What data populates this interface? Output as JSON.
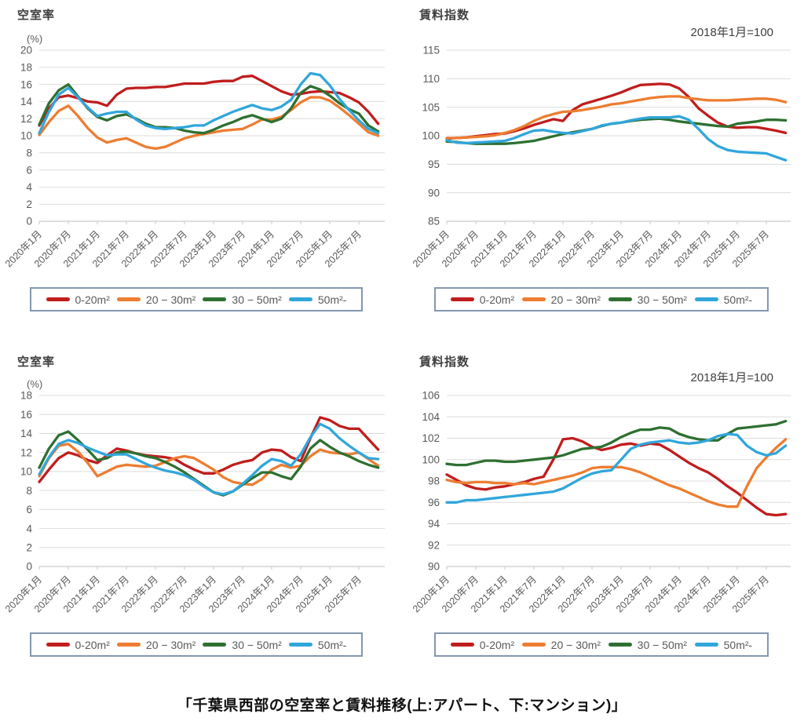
{
  "caption": "「千葉県西部の空室率と賃料推移(上:アパート、下:マンション)」",
  "legend": {
    "items": [
      {
        "label": "0-20m²",
        "color": "#c01d1d"
      },
      {
        "label": "20 − 30m²",
        "color": "#ed7d31"
      },
      {
        "label": "30 − 50m²",
        "color": "#2e7031"
      },
      {
        "label": "50m²-",
        "color": "#31a6db"
      }
    ]
  },
  "x_axis": {
    "tick_labels": [
      "2020年1月",
      "2020年7月",
      "2021年1月",
      "2021年7月",
      "2022年1月",
      "2022年7月",
      "2023年1月",
      "2023年7月",
      "2024年1月",
      "2024年7月",
      "2025年1月",
      "2025年7月"
    ],
    "note": "monthly data from 2020年1月; series drawn at 2-month steps extending slightly past 2025年7月"
  },
  "palette": {
    "red": "#c01d1d",
    "orange": "#ed7d31",
    "green": "#2e7031",
    "blue": "#31a6db",
    "grid": "#dcdcdc",
    "axis": "#c9c9c9",
    "tick_text": "#595959",
    "legend_border": "#8497b0"
  },
  "chart_data": [
    {
      "type": "line",
      "title": "空室率",
      "unit_label": "(%)",
      "group": "アパート",
      "position": "top-left",
      "ylim": [
        0,
        20
      ],
      "ystep": 2,
      "grid": true,
      "legend_position": "bottom-box",
      "y_tick_labels": [
        "20",
        "18",
        "16",
        "14",
        "12",
        "10",
        "8",
        "6",
        "4",
        "2",
        "0"
      ],
      "series": [
        {
          "name": "0-20m²",
          "color": "#c01d1d",
          "values": [
            11.2,
            13.2,
            14.5,
            14.7,
            14.4,
            14.0,
            13.9,
            13.5,
            14.8,
            15.5,
            15.6,
            15.6,
            15.7,
            15.7,
            15.9,
            16.1,
            16.1,
            16.1,
            16.3,
            16.4,
            16.4,
            16.9,
            17.0,
            16.4,
            15.8,
            15.2,
            14.8,
            14.9,
            15.1,
            15.2,
            15.1,
            15.0,
            14.5,
            13.9,
            12.8,
            11.4
          ]
        },
        {
          "name": "20 − 30m²",
          "color": "#ed7d31",
          "values": [
            10.1,
            11.6,
            12.9,
            13.5,
            12.3,
            10.9,
            9.8,
            9.2,
            9.5,
            9.7,
            9.2,
            8.7,
            8.5,
            8.7,
            9.2,
            9.7,
            10.0,
            10.2,
            10.4,
            10.6,
            10.7,
            10.8,
            11.3,
            11.9,
            11.9,
            12.2,
            13.0,
            13.9,
            14.5,
            14.5,
            14.1,
            13.3,
            12.4,
            11.4,
            10.4,
            10.0
          ]
        },
        {
          "name": "30 − 50m²",
          "color": "#2e7031",
          "values": [
            11.3,
            13.8,
            15.3,
            16.0,
            14.6,
            13.2,
            12.2,
            11.8,
            12.3,
            12.5,
            12.0,
            11.4,
            11.0,
            11.0,
            10.9,
            10.6,
            10.4,
            10.3,
            10.7,
            11.2,
            11.6,
            12.1,
            12.4,
            12.0,
            11.6,
            12.0,
            13.2,
            15.0,
            15.8,
            15.4,
            14.7,
            13.8,
            13.1,
            12.6,
            11.2,
            10.5
          ]
        },
        {
          "name": "50m²-",
          "color": "#31a6db",
          "values": [
            10.3,
            12.8,
            14.8,
            15.6,
            14.5,
            13.3,
            12.3,
            12.6,
            12.8,
            12.8,
            11.9,
            11.2,
            10.9,
            10.8,
            10.9,
            11.0,
            11.2,
            11.2,
            11.8,
            12.3,
            12.8,
            13.2,
            13.6,
            13.2,
            13.0,
            13.4,
            14.2,
            16.0,
            17.3,
            17.1,
            15.9,
            14.3,
            13.0,
            11.8,
            10.8,
            10.3
          ]
        }
      ]
    },
    {
      "type": "line",
      "title": "賃料指数",
      "subtitle": "2018年1月=100",
      "group": "アパート",
      "position": "top-right",
      "ylim": [
        85,
        115
      ],
      "ystep": 5,
      "grid": true,
      "legend_position": "bottom-box",
      "y_tick_labels": [
        "115",
        "110",
        "105",
        "100",
        "95",
        "90",
        "85"
      ],
      "series": [
        {
          "name": "0-20m²",
          "color": "#c01d1d",
          "values": [
            99.5,
            99.6,
            99.7,
            99.9,
            100.1,
            100.3,
            100.4,
            100.8,
            101.3,
            101.9,
            102.4,
            102.9,
            102.6,
            104.5,
            105.5,
            106.0,
            106.5,
            107.0,
            107.6,
            108.3,
            108.9,
            109.0,
            109.1,
            109.0,
            108.3,
            106.8,
            104.8,
            103.5,
            102.3,
            101.6,
            101.4,
            101.5,
            101.5,
            101.2,
            100.9,
            100.5
          ]
        },
        {
          "name": "20 − 30m²",
          "color": "#ed7d31",
          "values": [
            99.6,
            99.6,
            99.7,
            99.8,
            99.9,
            100.1,
            100.5,
            101.0,
            101.7,
            102.6,
            103.3,
            103.8,
            104.2,
            104.3,
            104.5,
            104.8,
            105.1,
            105.5,
            105.7,
            106.0,
            106.3,
            106.6,
            106.8,
            106.9,
            106.9,
            106.6,
            106.4,
            106.2,
            106.2,
            106.2,
            106.3,
            106.4,
            106.5,
            106.5,
            106.3,
            105.9
          ]
        },
        {
          "name": "30 − 50m²",
          "color": "#2e7031",
          "values": [
            99.0,
            98.9,
            98.7,
            98.6,
            98.6,
            98.6,
            98.6,
            98.7,
            98.9,
            99.1,
            99.5,
            99.9,
            100.3,
            100.6,
            100.9,
            101.2,
            101.7,
            102.1,
            102.3,
            102.6,
            102.8,
            102.9,
            103.0,
            102.8,
            102.5,
            102.3,
            102.1,
            101.9,
            101.7,
            101.6,
            102.1,
            102.3,
            102.5,
            102.8,
            102.8,
            102.7
          ]
        },
        {
          "name": "50m²-",
          "color": "#31a6db",
          "values": [
            99.2,
            98.8,
            98.7,
            98.8,
            98.9,
            99.0,
            99.1,
            99.6,
            100.3,
            100.9,
            101.0,
            100.7,
            100.5,
            100.4,
            100.8,
            101.2,
            101.8,
            102.1,
            102.3,
            102.7,
            103.0,
            103.2,
            103.2,
            103.2,
            103.4,
            102.8,
            101.2,
            99.4,
            98.2,
            97.5,
            97.2,
            97.1,
            97.0,
            96.9,
            96.3,
            95.7
          ]
        }
      ]
    },
    {
      "type": "line",
      "title": "空室率",
      "unit_label": "(%)",
      "group": "マンション",
      "position": "bottom-left",
      "ylim": [
        0,
        18
      ],
      "ystep": 2,
      "grid": true,
      "legend_position": "bottom-box",
      "y_tick_labels": [
        "18",
        "16",
        "14",
        "12",
        "10",
        "8",
        "6",
        "4",
        "2",
        "0"
      ],
      "series": [
        {
          "name": "0-20m²",
          "color": "#c01d1d",
          "values": [
            8.9,
            10.2,
            11.4,
            12.0,
            11.7,
            11.2,
            10.9,
            11.7,
            12.4,
            12.2,
            11.9,
            11.7,
            11.6,
            11.5,
            11.3,
            10.7,
            10.2,
            9.8,
            9.8,
            10.2,
            10.7,
            11.0,
            11.2,
            12.0,
            12.3,
            12.2,
            11.5,
            11.1,
            13.5,
            15.7,
            15.4,
            14.8,
            14.5,
            14.5,
            13.4,
            12.3
          ]
        },
        {
          "name": "20 − 30m²",
          "color": "#ed7d31",
          "values": [
            9.5,
            11.4,
            12.7,
            12.9,
            12.1,
            10.9,
            9.5,
            10.0,
            10.5,
            10.7,
            10.6,
            10.5,
            10.6,
            11.0,
            11.4,
            11.6,
            11.4,
            10.8,
            10.2,
            9.4,
            8.9,
            8.7,
            8.6,
            9.2,
            10.2,
            10.7,
            10.4,
            10.6,
            11.6,
            12.3,
            12.0,
            11.9,
            11.8,
            12.0,
            11.3,
            10.6
          ]
        },
        {
          "name": "30 − 50m²",
          "color": "#2e7031",
          "values": [
            10.4,
            12.4,
            13.8,
            14.2,
            13.3,
            12.3,
            11.2,
            11.4,
            12.0,
            12.1,
            11.9,
            11.6,
            11.4,
            11.0,
            10.5,
            9.9,
            9.2,
            8.5,
            7.8,
            7.5,
            7.9,
            8.6,
            9.3,
            9.9,
            9.9,
            9.5,
            9.2,
            10.5,
            12.4,
            13.3,
            12.6,
            12.0,
            11.6,
            11.1,
            10.7,
            10.4
          ]
        },
        {
          "name": "50m²-",
          "color": "#31a6db",
          "values": [
            9.7,
            11.5,
            12.9,
            13.3,
            13.0,
            12.5,
            12.1,
            11.7,
            11.8,
            11.8,
            11.3,
            10.8,
            10.4,
            10.1,
            9.9,
            9.6,
            9.1,
            8.4,
            7.8,
            7.6,
            7.9,
            8.7,
            9.6,
            10.6,
            11.3,
            11.1,
            10.6,
            11.8,
            13.6,
            15.0,
            14.5,
            13.5,
            12.7,
            12.0,
            11.4,
            11.3
          ]
        }
      ]
    },
    {
      "type": "line",
      "title": "賃料指数",
      "subtitle": "2018年1月=100",
      "group": "マンション",
      "position": "bottom-right",
      "ylim": [
        90,
        106
      ],
      "ystep": 2,
      "grid": true,
      "legend_position": "bottom-box",
      "y_tick_labels": [
        "106",
        "104",
        "102",
        "100",
        "98",
        "96",
        "94",
        "92",
        "90"
      ],
      "series": [
        {
          "name": "0-20m²",
          "color": "#c01d1d",
          "values": [
            98.6,
            98.1,
            97.6,
            97.3,
            97.2,
            97.4,
            97.5,
            97.7,
            97.9,
            98.2,
            98.4,
            100.0,
            101.9,
            102.0,
            101.7,
            101.2,
            100.9,
            101.1,
            101.4,
            101.5,
            101.3,
            101.5,
            101.4,
            100.9,
            100.3,
            99.7,
            99.2,
            98.8,
            98.2,
            97.5,
            96.9,
            96.2,
            95.5,
            94.9,
            94.8,
            94.9
          ]
        },
        {
          "name": "20 − 30m²",
          "color": "#ed7d31",
          "values": [
            98.1,
            97.9,
            97.8,
            97.9,
            97.9,
            97.8,
            97.8,
            97.7,
            97.8,
            97.7,
            97.9,
            98.1,
            98.3,
            98.5,
            98.8,
            99.2,
            99.3,
            99.3,
            99.3,
            99.1,
            98.8,
            98.4,
            98.0,
            97.6,
            97.3,
            96.9,
            96.5,
            96.1,
            95.8,
            95.6,
            95.6,
            97.5,
            99.2,
            100.2,
            101.1,
            101.9
          ]
        },
        {
          "name": "30 − 50m²",
          "color": "#2e7031",
          "values": [
            99.6,
            99.5,
            99.5,
            99.7,
            99.9,
            99.9,
            99.8,
            99.8,
            99.9,
            100.0,
            100.1,
            100.2,
            100.4,
            100.7,
            101.0,
            101.1,
            101.2,
            101.6,
            102.1,
            102.5,
            102.8,
            102.8,
            103.0,
            102.9,
            102.4,
            102.1,
            101.9,
            101.8,
            101.8,
            102.4,
            102.9,
            103.0,
            103.1,
            103.2,
            103.3,
            103.6
          ]
        },
        {
          "name": "50m²-",
          "color": "#31a6db",
          "values": [
            96.0,
            96.0,
            96.2,
            96.2,
            96.3,
            96.4,
            96.5,
            96.6,
            96.7,
            96.8,
            96.9,
            97.0,
            97.3,
            97.8,
            98.3,
            98.7,
            98.9,
            99.0,
            100.0,
            101.0,
            101.4,
            101.6,
            101.7,
            101.8,
            101.6,
            101.5,
            101.6,
            101.8,
            102.2,
            102.4,
            102.3,
            101.3,
            100.7,
            100.4,
            100.6,
            101.3
          ]
        }
      ]
    }
  ]
}
